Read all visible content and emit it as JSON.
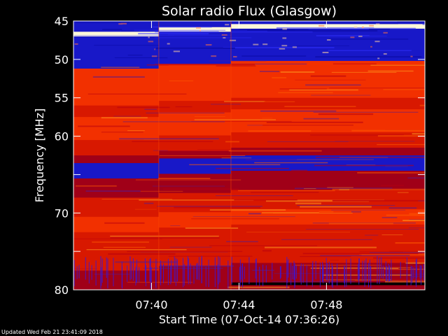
{
  "title": "Solar radio Flux (Glasgow)",
  "footer": "Updated Wed Feb 21 23:41:09 2018",
  "chart_data": {
    "type": "heatmap",
    "title": "Solar radio Flux (Glasgow)",
    "xlabel": "Start Time (07-Oct-14 07:36:26)",
    "ylabel": "Frequency [MHz]",
    "x_axis": {
      "start": "07:36:26",
      "end": "07:52:30",
      "ticks": [
        {
          "label": "07:40",
          "minutes": 3.567
        },
        {
          "label": "07:44",
          "minutes": 7.567
        },
        {
          "label": "07:48",
          "minutes": 11.567
        }
      ]
    },
    "y_axis": {
      "range": [
        45,
        80
      ],
      "direction": "top-to-bottom",
      "ticks": [
        45,
        50,
        55,
        60,
        65,
        70,
        75,
        80
      ],
      "tick_labels": [
        "45",
        "50",
        "55",
        "60",
        "",
        "70",
        "",
        "80"
      ]
    },
    "segment_breaks_minutes": [
      3.9,
      7.2
    ],
    "bands": [
      {
        "from": 45.0,
        "to": 45.6,
        "level": "low"
      },
      {
        "from": 45.6,
        "to": 46.4,
        "level": "low"
      },
      {
        "from": 46.4,
        "to": 47.0,
        "level": "max"
      },
      {
        "from": 47.0,
        "to": 48.5,
        "level": "low"
      },
      {
        "from": 48.5,
        "to": 50.5,
        "level": "low"
      },
      {
        "from": 50.5,
        "to": 51.2,
        "level": "low"
      },
      {
        "from": 51.2,
        "to": 52.5,
        "level": "high"
      },
      {
        "from": 52.5,
        "to": 56.0,
        "level": "high"
      },
      {
        "from": 56.0,
        "to": 57.5,
        "level": "medium"
      },
      {
        "from": 57.5,
        "to": 59.5,
        "level": "high"
      },
      {
        "from": 59.5,
        "to": 60.5,
        "level": "high"
      },
      {
        "from": 60.5,
        "to": 62.5,
        "level": "medium"
      },
      {
        "from": 62.5,
        "to": 63.5,
        "level": "medium-low"
      },
      {
        "from": 63.5,
        "to": 65.5,
        "level": "low"
      },
      {
        "from": 65.5,
        "to": 68.0,
        "level": "medium-low"
      },
      {
        "from": 68.0,
        "to": 70.5,
        "level": "medium"
      },
      {
        "from": 70.5,
        "to": 72.5,
        "level": "high"
      },
      {
        "from": 72.5,
        "to": 75.5,
        "level": "medium"
      },
      {
        "from": 75.5,
        "to": 77.5,
        "level": "medium"
      },
      {
        "from": 77.5,
        "to": 80.0,
        "level": "medium-low"
      }
    ],
    "colormap": {
      "low": "#1818c8",
      "medium-low": "#a00018",
      "medium": "#d81800",
      "high": "#f23000",
      "max": "#fff8d8"
    }
  }
}
